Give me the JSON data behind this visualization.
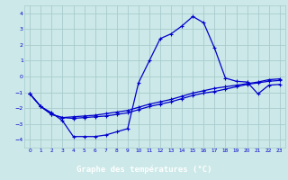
{
  "title": "Graphe des températures (°C)",
  "bg_color": "#cce8e8",
  "grid_color": "#a8cccc",
  "line_color": "#0000cc",
  "label_bar_color": "#0000aa",
  "label_text_color": "#ffffff",
  "xlim": [
    -0.5,
    23.5
  ],
  "ylim": [
    -4.5,
    4.5
  ],
  "yticks": [
    -4,
    -3,
    -2,
    -1,
    0,
    1,
    2,
    3,
    4
  ],
  "xticks": [
    0,
    1,
    2,
    3,
    4,
    5,
    6,
    7,
    8,
    9,
    10,
    11,
    12,
    13,
    14,
    15,
    16,
    17,
    18,
    19,
    20,
    21,
    22,
    23
  ],
  "line1_x": [
    0,
    1,
    2,
    3,
    4,
    5,
    6,
    7,
    8,
    9,
    10,
    11,
    12,
    13,
    14,
    15,
    16,
    17,
    18,
    19,
    20,
    21,
    22,
    23
  ],
  "line1_y": [
    -1.1,
    -1.9,
    -2.3,
    -2.8,
    -3.8,
    -3.8,
    -3.8,
    -3.7,
    -3.5,
    -3.3,
    -0.4,
    1.0,
    2.4,
    2.7,
    3.2,
    3.8,
    3.4,
    1.8,
    -0.1,
    -0.3,
    -0.35,
    -1.1,
    -0.55,
    -0.5
  ],
  "line2_x": [
    0,
    1,
    2,
    3,
    4,
    5,
    6,
    7,
    8,
    9,
    10,
    11,
    12,
    13,
    14,
    15,
    16,
    17,
    18,
    19,
    20,
    21,
    22,
    23
  ],
  "line2_y": [
    -1.1,
    -1.9,
    -2.4,
    -2.6,
    -2.65,
    -2.6,
    -2.55,
    -2.5,
    -2.4,
    -2.3,
    -2.1,
    -1.9,
    -1.75,
    -1.6,
    -1.4,
    -1.2,
    -1.05,
    -0.95,
    -0.8,
    -0.65,
    -0.5,
    -0.4,
    -0.3,
    -0.25
  ],
  "line3_x": [
    0,
    1,
    2,
    3,
    4,
    5,
    6,
    7,
    8,
    9,
    10,
    11,
    12,
    13,
    14,
    15,
    16,
    17,
    18,
    19,
    20,
    21,
    22,
    23
  ],
  "line3_y": [
    -1.1,
    -1.9,
    -2.4,
    -2.6,
    -2.55,
    -2.5,
    -2.45,
    -2.35,
    -2.25,
    -2.15,
    -1.95,
    -1.75,
    -1.6,
    -1.45,
    -1.25,
    -1.05,
    -0.9,
    -0.75,
    -0.65,
    -0.55,
    -0.45,
    -0.35,
    -0.2,
    -0.15
  ]
}
